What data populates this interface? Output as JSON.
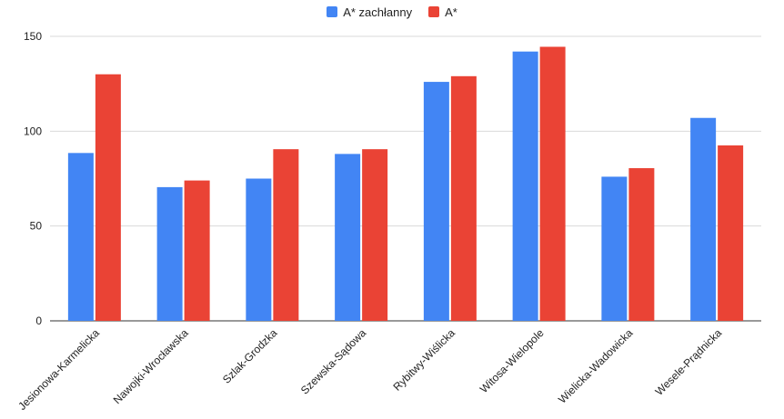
{
  "chart_data": {
    "type": "bar",
    "categories": [
      "Jesionowa-Karmelicka",
      "Nawojki-Wrocławska",
      "Szlak-Grodzka",
      "Szewska-Sądowa",
      "Rybitwy-Wiślicka",
      "Witosa-Wielopole",
      "Wielicka-Wadowicka",
      "Wesele-Prądnicka"
    ],
    "series": [
      {
        "name": "A* zachłanny",
        "color": "#4285f4",
        "values": [
          88.5,
          70.5,
          75,
          88,
          126,
          142,
          76,
          107
        ]
      },
      {
        "name": "A*",
        "color": "#ea4335",
        "values": [
          130,
          74,
          90.5,
          90.5,
          129,
          144.5,
          80.5,
          92.5
        ]
      }
    ],
    "title": "",
    "xlabel": "",
    "ylabel": "",
    "ylim": [
      0,
      150
    ],
    "yticks": [
      0,
      50,
      100,
      150
    ],
    "grid": true,
    "legend_position": "top-center"
  }
}
